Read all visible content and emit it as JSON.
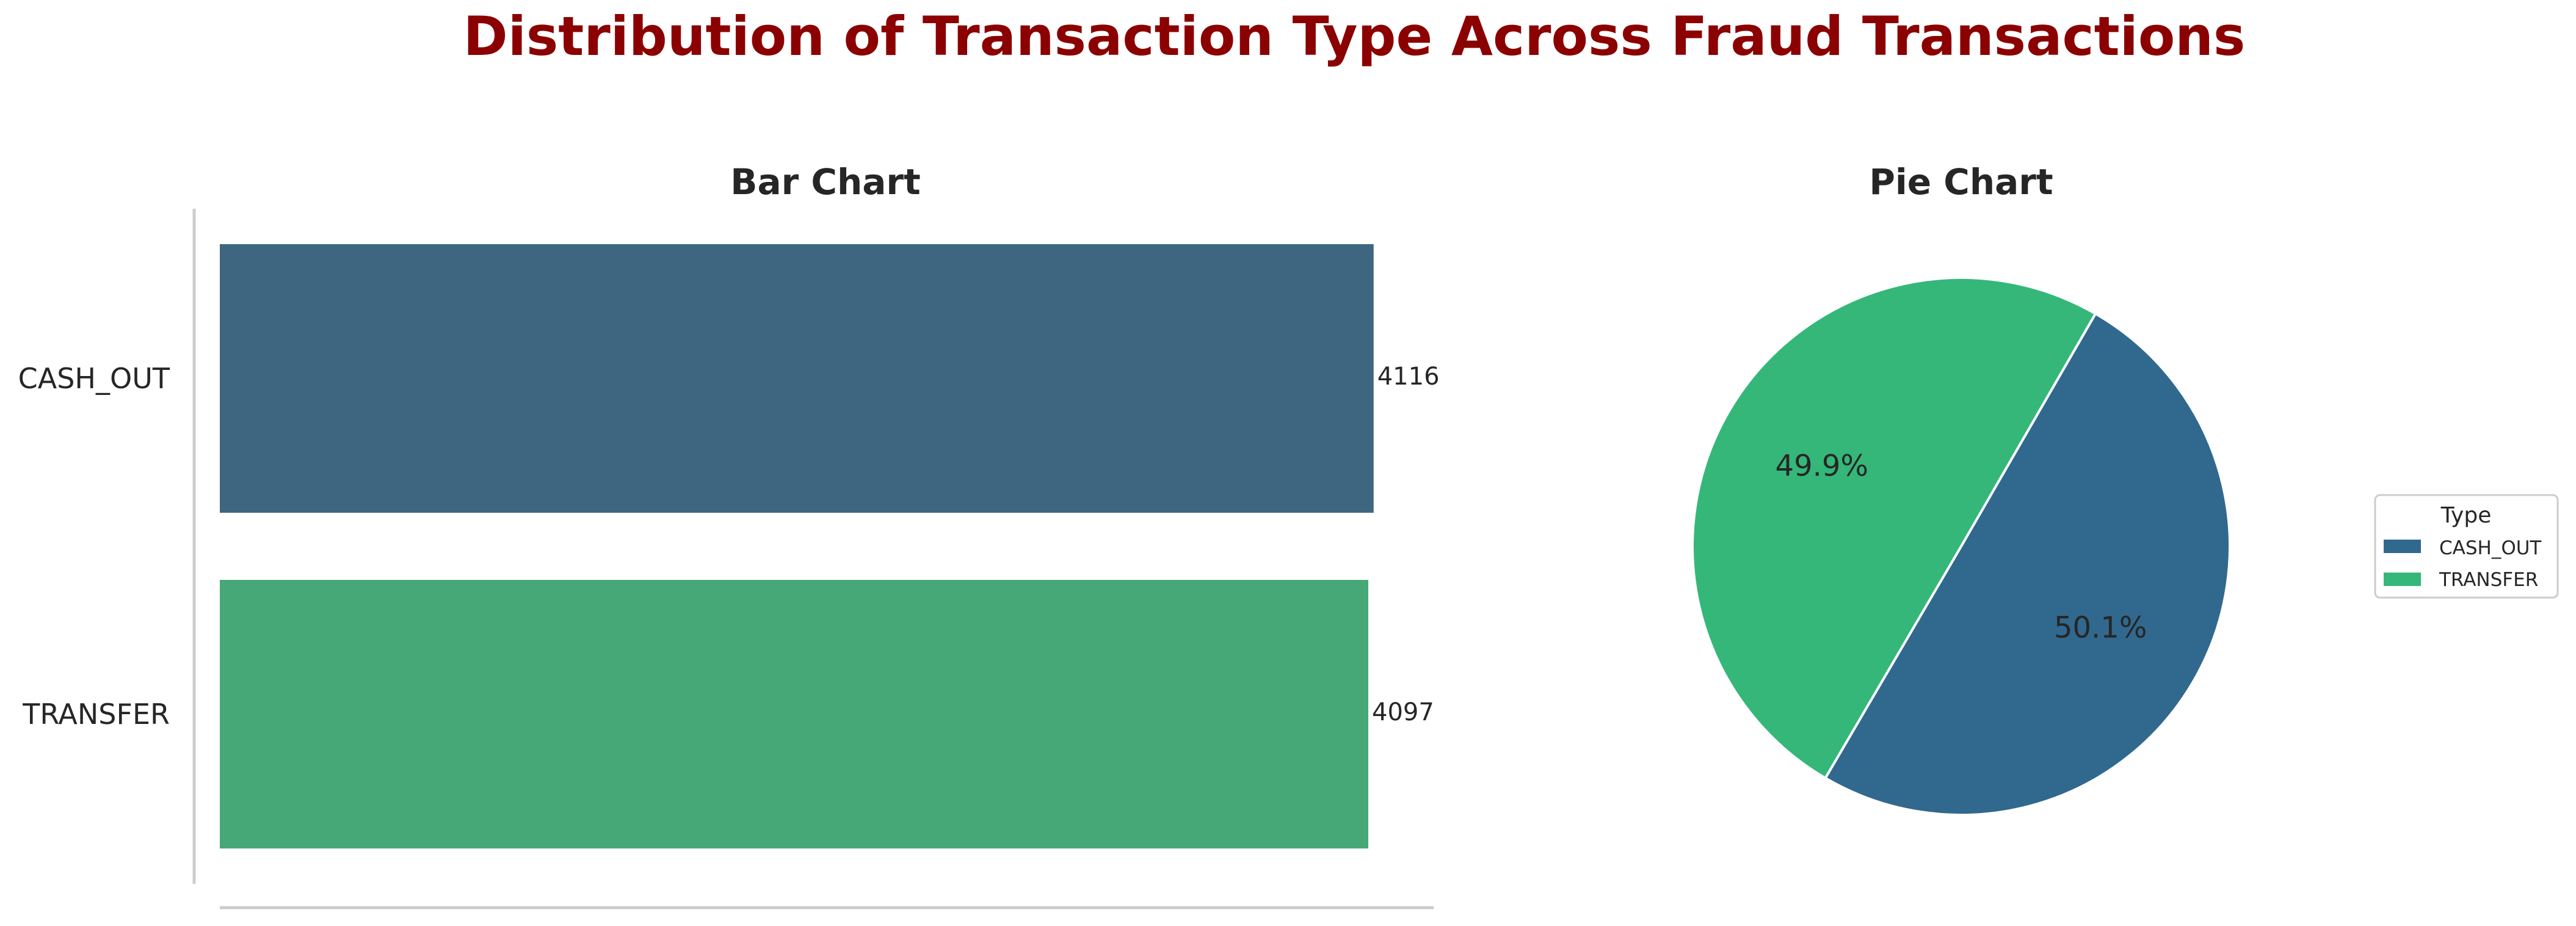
{
  "figure": {
    "title": "Distribution of Transaction Type Across Fraud Transactions",
    "title_color": "#8b0000"
  },
  "chart_data": [
    {
      "type": "bar",
      "orientation": "horizontal",
      "title": "Bar Chart",
      "categories": [
        "CASH_OUT",
        "TRANSFER"
      ],
      "values": [
        4116,
        4097
      ],
      "data_labels": [
        "4116",
        "4097"
      ],
      "xlim": [
        0,
        4330
      ],
      "colors": [
        "#3f6680",
        "#46a877"
      ],
      "grid": false,
      "xlabel": "",
      "ylabel": ""
    },
    {
      "type": "pie",
      "title": "Pie Chart",
      "labels": [
        "CASH_OUT",
        "TRANSFER"
      ],
      "values": [
        50.1,
        49.9
      ],
      "pct_labels": [
        "50.1%",
        "49.9%"
      ],
      "colors": [
        "#31688e",
        "#35b779"
      ],
      "legend": {
        "title": "Type",
        "entries": [
          "CASH_OUT",
          "TRANSFER"
        ],
        "placement": "center-right"
      }
    }
  ]
}
